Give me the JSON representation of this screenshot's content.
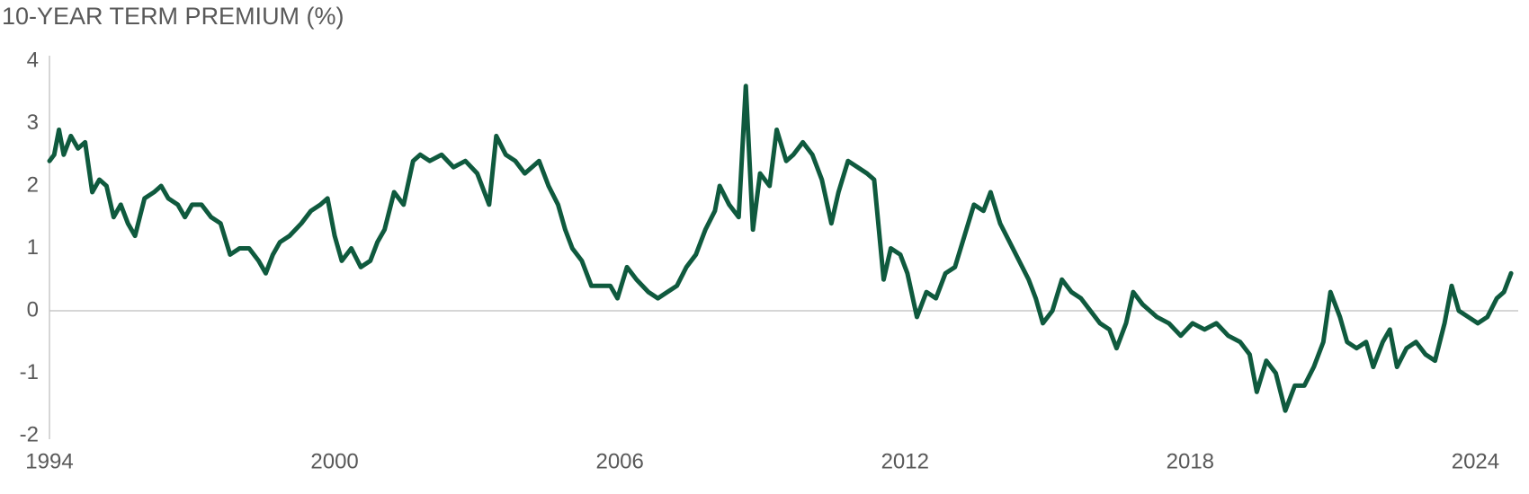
{
  "chart_data": {
    "type": "line",
    "title": "10-YEAR TERM PREMIUM (%)",
    "x": [
      1994.0,
      1994.1,
      1994.2,
      1994.3,
      1994.45,
      1994.6,
      1994.75,
      1994.9,
      1995.05,
      1995.2,
      1995.35,
      1995.5,
      1995.65,
      1995.8,
      1996.0,
      1996.2,
      1996.35,
      1996.5,
      1996.7,
      1996.85,
      1997.0,
      1997.2,
      1997.4,
      1997.6,
      1997.8,
      1998.0,
      1998.2,
      1998.4,
      1998.55,
      1998.7,
      1998.85,
      1999.05,
      1999.3,
      1999.5,
      1999.7,
      1999.85,
      2000.0,
      2000.15,
      2000.35,
      2000.55,
      2000.75,
      2000.9,
      2001.05,
      2001.25,
      2001.45,
      2001.65,
      2001.8,
      2002.0,
      2002.25,
      2002.5,
      2002.75,
      2003.0,
      2003.25,
      2003.4,
      2003.6,
      2003.8,
      2004.0,
      2004.3,
      2004.5,
      2004.7,
      2004.85,
      2005.0,
      2005.2,
      2005.4,
      2005.6,
      2005.8,
      2005.95,
      2006.15,
      2006.35,
      2006.6,
      2006.8,
      2007.0,
      2007.2,
      2007.4,
      2007.6,
      2007.8,
      2008.0,
      2008.1,
      2008.3,
      2008.5,
      2008.65,
      2008.8,
      2008.95,
      2009.15,
      2009.3,
      2009.5,
      2009.65,
      2009.85,
      2010.05,
      2010.25,
      2010.45,
      2010.6,
      2010.8,
      2011.0,
      2011.2,
      2011.35,
      2011.55,
      2011.7,
      2011.9,
      2012.05,
      2012.25,
      2012.45,
      2012.65,
      2012.85,
      2013.05,
      2013.25,
      2013.45,
      2013.65,
      2013.8,
      2014.0,
      2014.2,
      2014.4,
      2014.6,
      2014.75,
      2014.9,
      2015.1,
      2015.3,
      2015.5,
      2015.7,
      2015.9,
      2016.1,
      2016.3,
      2016.45,
      2016.65,
      2016.8,
      2017.0,
      2017.3,
      2017.55,
      2017.8,
      2018.05,
      2018.3,
      2018.55,
      2018.8,
      2019.05,
      2019.25,
      2019.4,
      2019.6,
      2019.8,
      2020.0,
      2020.2,
      2020.4,
      2020.6,
      2020.8,
      2020.95,
      2021.15,
      2021.3,
      2021.5,
      2021.7,
      2021.85,
      2022.05,
      2022.2,
      2022.35,
      2022.55,
      2022.75,
      2022.95,
      2023.15,
      2023.35,
      2023.5,
      2023.65,
      2023.85,
      2024.05,
      2024.25,
      2024.45,
      2024.6,
      2024.75
    ],
    "values": [
      2.4,
      2.5,
      2.9,
      2.5,
      2.8,
      2.6,
      2.7,
      1.9,
      2.1,
      2.0,
      1.5,
      1.7,
      1.4,
      1.2,
      1.8,
      1.9,
      2.0,
      1.8,
      1.7,
      1.5,
      1.7,
      1.7,
      1.5,
      1.4,
      0.9,
      1.0,
      1.0,
      0.8,
      0.6,
      0.9,
      1.1,
      1.2,
      1.4,
      1.6,
      1.7,
      1.8,
      1.2,
      0.8,
      1.0,
      0.7,
      0.8,
      1.1,
      1.3,
      1.9,
      1.7,
      2.4,
      2.5,
      2.4,
      2.5,
      2.3,
      2.4,
      2.2,
      1.7,
      2.8,
      2.5,
      2.4,
      2.2,
      2.4,
      2.0,
      1.7,
      1.3,
      1.0,
      0.8,
      0.4,
      0.4,
      0.4,
      0.2,
      0.7,
      0.5,
      0.3,
      0.2,
      0.3,
      0.4,
      0.7,
      0.9,
      1.3,
      1.6,
      2.0,
      1.7,
      1.5,
      3.6,
      1.3,
      2.2,
      2.0,
      2.9,
      2.4,
      2.5,
      2.7,
      2.5,
      2.1,
      1.4,
      1.9,
      2.4,
      2.3,
      2.2,
      2.1,
      0.5,
      1.0,
      0.9,
      0.6,
      -0.1,
      0.3,
      0.2,
      0.6,
      0.7,
      1.2,
      1.7,
      1.6,
      1.9,
      1.4,
      1.1,
      0.8,
      0.5,
      0.2,
      -0.2,
      0.0,
      0.5,
      0.3,
      0.2,
      0.0,
      -0.2,
      -0.3,
      -0.6,
      -0.2,
      0.3,
      0.1,
      -0.1,
      -0.2,
      -0.4,
      -0.2,
      -0.3,
      -0.2,
      -0.4,
      -0.5,
      -0.7,
      -1.3,
      -0.8,
      -1.0,
      -1.6,
      -1.2,
      -1.2,
      -0.9,
      -0.5,
      0.3,
      -0.1,
      -0.5,
      -0.6,
      -0.5,
      -0.9,
      -0.5,
      -0.3,
      -0.9,
      -0.6,
      -0.5,
      -0.7,
      -0.8,
      -0.2,
      0.4,
      0.0,
      -0.1,
      -0.2,
      -0.1,
      0.2,
      0.3,
      0.6
    ],
    "color": "#0f5a3e",
    "xlim": [
      1994,
      2024.9
    ],
    "xticks": [
      1994,
      2000,
      2006,
      2012,
      2018,
      2024
    ],
    "ylim": [
      -2,
      4
    ],
    "yticks": [
      -2,
      -1,
      0,
      1,
      2,
      3,
      4
    ]
  }
}
